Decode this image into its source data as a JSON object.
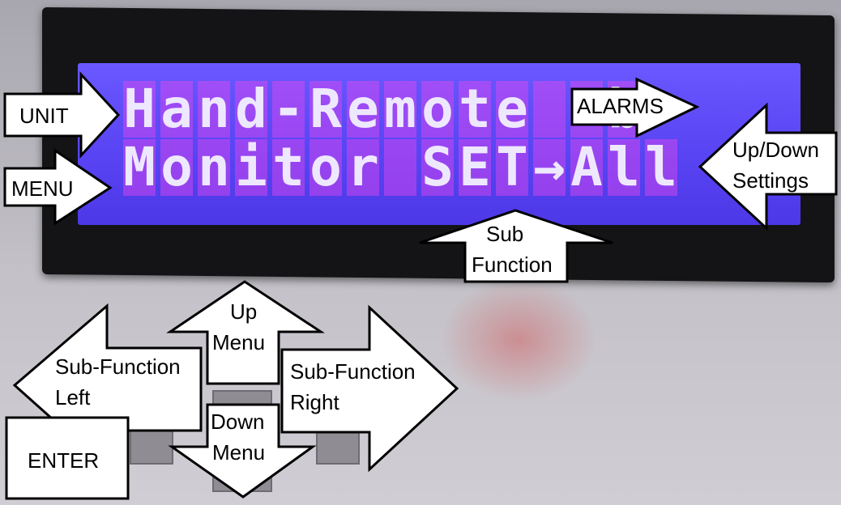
{
  "lcd": {
    "line1": "Hand-Remote  b",
    "line2": "Monitor SET→All"
  },
  "callouts": {
    "unit": "UNIT",
    "menu": "MENU",
    "alarms": "ALARMS",
    "updown_settings_1": "Up/Down",
    "updown_settings_2": "Settings",
    "sub_function_1": "Sub",
    "sub_function_2": "Function",
    "up_menu_1": "Up",
    "up_menu_2": "Menu",
    "down_menu_1": "Down",
    "down_menu_2": "Menu",
    "left_1": "Sub-Function",
    "left_2": "Left",
    "right_1": "Sub-Function",
    "right_2": "Right",
    "enter": "ENTER"
  },
  "colors": {
    "screen": "#5a46f4",
    "pixel": "#eee8ff",
    "bezel": "#141416",
    "callout_fill": "#ffffff",
    "callout_stroke": "#000000"
  }
}
